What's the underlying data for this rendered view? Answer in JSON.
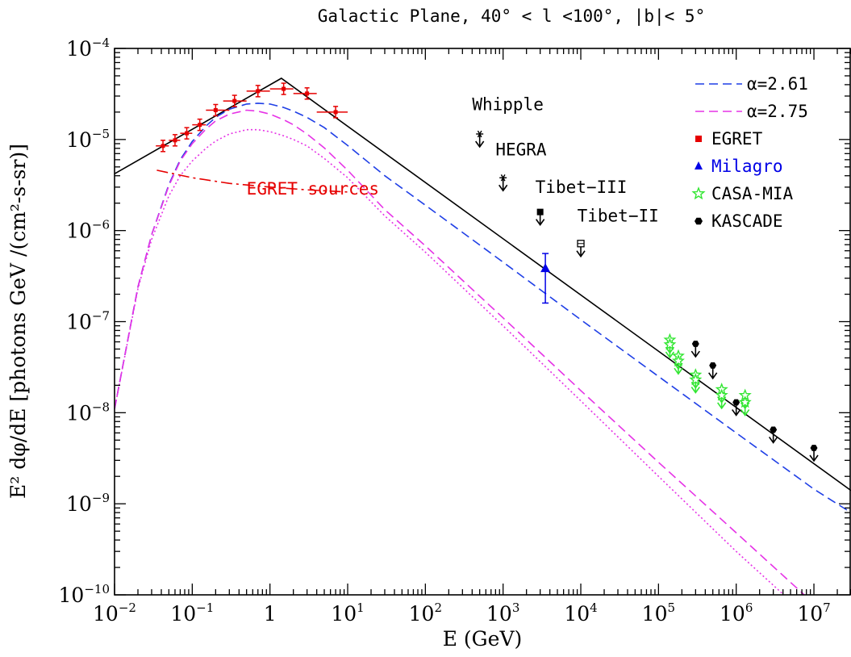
{
  "chart_data": {
    "type": "line",
    "title": "Galactic Plane, 40° < l <100°, |b|< 5°",
    "xlabel": "E (GeV)",
    "ylabel": "E² dφ/dE  [photons GeV /(cm²-s-sr)]",
    "xscale": "log",
    "yscale": "log",
    "xlim": [
      0.01,
      30000000
    ],
    "ylim": [
      1e-10,
      0.0001
    ],
    "x_ticks": [
      {
        "value": 0.01,
        "base": "10",
        "exp": "−2"
      },
      {
        "value": 0.1,
        "base": "10",
        "exp": "−1"
      },
      {
        "value": 1,
        "base": "1",
        "exp": ""
      },
      {
        "value": 10,
        "base": "10",
        "exp": "1"
      },
      {
        "value": 100,
        "base": "10",
        "exp": "2"
      },
      {
        "value": 1000,
        "base": "10",
        "exp": "3"
      },
      {
        "value": 10000,
        "base": "10",
        "exp": "4"
      },
      {
        "value": 100000,
        "base": "10",
        "exp": "5"
      },
      {
        "value": 1000000,
        "base": "10",
        "exp": "6"
      },
      {
        "value": 10000000,
        "base": "10",
        "exp": "7"
      }
    ],
    "y_ticks": [
      {
        "value": 1e-10,
        "base": "10",
        "exp": "−10"
      },
      {
        "value": 1e-09,
        "base": "10",
        "exp": "−9"
      },
      {
        "value": 1e-08,
        "base": "10",
        "exp": "−8"
      },
      {
        "value": 1e-07,
        "base": "10",
        "exp": "−7"
      },
      {
        "value": 1e-06,
        "base": "10",
        "exp": "−6"
      },
      {
        "value": 1e-05,
        "base": "10",
        "exp": "−5"
      },
      {
        "value": 0.0001,
        "base": "10",
        "exp": "−4"
      }
    ],
    "grid": false,
    "legend_position": "top-right",
    "legend": [
      {
        "label": "α=2.61",
        "style": "dashed",
        "color": "#1f3fe6"
      },
      {
        "label": "α=2.75",
        "style": "dashed",
        "color": "#e633e6"
      },
      {
        "label": "EGRET",
        "marker": "square",
        "color": "#e60000",
        "text_color": "#000000"
      },
      {
        "label": "Milagro",
        "marker": "triangle",
        "color": "#0000e6",
        "text_color": "#0000e6"
      },
      {
        "label": "CASA-MIA",
        "marker": "star",
        "color": "#33e633",
        "text_color": "#000000"
      },
      {
        "label": "KASCADE",
        "marker": "hexagon",
        "color": "#000000",
        "text_color": "#000000"
      }
    ],
    "series": [
      {
        "style": "solid",
        "color": "#000000",
        "x": [
          0.01,
          1.4,
          30000000
        ],
        "y": [
          4.2e-06,
          4.7e-05,
          1.4e-09
        ]
      },
      {
        "name": "α=2.61",
        "style": "dashed",
        "color": "#1f3fe6",
        "x": [
          0.01,
          0.02,
          0.03,
          0.05,
          0.07,
          0.1,
          0.15,
          0.2,
          0.3,
          0.5,
          0.7,
          1,
          1.5,
          2,
          3,
          5,
          10,
          30,
          100,
          1000,
          10000,
          100000,
          1000000,
          10000000,
          30000000
        ],
        "y": [
          1.1e-08,
          2.4e-07,
          9e-07,
          3.2e-06,
          6e-06,
          9.5e-06,
          1.4e-05,
          1.75e-05,
          2.15e-05,
          2.45e-05,
          2.5e-05,
          2.45e-05,
          2.25e-05,
          2.05e-05,
          1.75e-05,
          1.35e-05,
          8.6e-06,
          4e-06,
          1.9e-06,
          4.5e-07,
          1.05e-07,
          2.5e-08,
          6e-09,
          1.45e-09,
          8e-10
        ]
      },
      {
        "name": "α=2.75",
        "style": "dashed",
        "color": "#e633e6",
        "x": [
          0.01,
          0.02,
          0.03,
          0.05,
          0.07,
          0.1,
          0.15,
          0.2,
          0.3,
          0.5,
          0.7,
          1,
          1.5,
          2,
          3,
          5,
          10,
          30,
          100,
          1000,
          10000,
          100000,
          1000000,
          10000000,
          30000000
        ],
        "y": [
          1.1e-08,
          2.4e-07,
          9e-07,
          3.1e-06,
          5.8e-06,
          9e-06,
          1.3e-05,
          1.6e-05,
          1.9e-05,
          2.1e-05,
          2.05e-05,
          1.9e-05,
          1.65e-05,
          1.45e-05,
          1.15e-05,
          8.1e-06,
          4.6e-06,
          1.7e-06,
          6.8e-07,
          1.1e-07,
          1.75e-08,
          2.85e-09,
          4.8e-10,
          8e-11,
          3.5e-11
        ]
      },
      {
        "style": "dotted",
        "color": "#e633e6",
        "x": [
          0.01,
          0.02,
          0.03,
          0.05,
          0.07,
          0.1,
          0.15,
          0.2,
          0.3,
          0.5,
          0.7,
          1,
          1.5,
          2,
          3,
          5,
          10,
          30,
          100,
          1000,
          10000,
          100000,
          1000000,
          10000000
        ],
        "y": [
          1.1e-08,
          2.3e-07,
          8e-07,
          2.4e-06,
          4e-06,
          5.8e-06,
          8e-06,
          9.6e-06,
          1.15e-05,
          1.28e-05,
          1.28e-05,
          1.22e-05,
          1.1e-05,
          1e-05,
          8.5e-06,
          6.2e-06,
          3.8e-06,
          1.45e-06,
          5.8e-07,
          9e-08,
          1.35e-08,
          2e-09,
          3e-10,
          5e-11
        ]
      },
      {
        "name": "EGRET sources",
        "style": "dashdot",
        "color": "#e60000",
        "x": [
          0.035,
          0.1,
          0.3,
          1,
          3,
          10
        ],
        "y": [
          4.6e-06,
          3.8e-06,
          3.3e-06,
          3e-06,
          2.8e-06,
          2.65e-06
        ]
      }
    ],
    "points": {
      "EGRET": {
        "color": "#e60000",
        "x": [
          0.042,
          0.06,
          0.085,
          0.125,
          0.2,
          0.35,
          0.7,
          1.5,
          3,
          7
        ],
        "y": [
          8.5e-06,
          9.8e-06,
          1.17e-05,
          1.45e-05,
          2.1e-05,
          2.65e-05,
          3.4e-05,
          3.6e-05,
          3.2e-05,
          2e-05
        ],
        "xerr_lo": [
          0.034,
          0.05,
          0.07,
          0.1,
          0.15,
          0.25,
          0.5,
          1,
          2,
          4
        ],
        "xerr_hi": [
          0.05,
          0.07,
          0.1,
          0.15,
          0.3,
          0.5,
          1,
          2,
          4,
          10
        ]
      },
      "Milagro": {
        "color": "#0000e6",
        "x": [
          3500
        ],
        "y": [
          3.8e-07
        ],
        "yerr_lo": [
          1.6e-07
        ],
        "yerr_hi": [
          5.6e-07
        ]
      },
      "CASA-MIA": {
        "color": "#33e633",
        "x": [
          140000,
          140000,
          180000,
          180000,
          300000,
          300000,
          650000,
          650000,
          1300000,
          1300000
        ],
        "y": [
          6.3e-08,
          5.6e-08,
          4.2e-08,
          3.7e-08,
          2.6e-08,
          2.3e-08,
          1.8e-08,
          1.55e-08,
          1.55e-08,
          1.3e-08
        ],
        "upper_limit": true
      },
      "KASCADE": {
        "color": "#000000",
        "x": [
          300000,
          500000,
          1000000,
          3000000,
          10000000
        ],
        "y": [
          5.7e-08,
          3.3e-08,
          1.3e-08,
          6.5e-09,
          4.1e-09
        ],
        "upper_limit": true
      },
      "Whipple": {
        "color": "#000000",
        "marker": "asterisk",
        "x": [
          500
        ],
        "y": [
          1.15e-05
        ],
        "upper_limit": true
      },
      "HEGRA": {
        "color": "#000000",
        "marker": "asterisk",
        "x": [
          1000
        ],
        "y": [
          3.8e-06
        ],
        "upper_limit": true
      },
      "Tibet-III": {
        "color": "#000000",
        "marker": "filled-square",
        "x": [
          3000
        ],
        "y": [
          1.6e-06
        ],
        "upper_limit": true
      },
      "Tibet-II": {
        "color": "#000000",
        "marker": "open-square",
        "x": [
          10000
        ],
        "y": [
          7.2e-07
        ],
        "upper_limit": true
      }
    },
    "annotations": [
      {
        "text": "Whipple",
        "x": 400,
        "y": 2.1e-05,
        "color": "#000000"
      },
      {
        "text": "HEGRA",
        "x": 800,
        "y": 6.7e-06,
        "color": "#000000"
      },
      {
        "text": "Tibet−III",
        "x": 2600,
        "y": 2.6e-06,
        "color": "#000000"
      },
      {
        "text": "Tibet−II",
        "x": 9000,
        "y": 1.25e-06,
        "color": "#000000"
      },
      {
        "text": "EGRET sources",
        "x": 0.5,
        "y": 2.5e-06,
        "color": "#e60000"
      }
    ]
  }
}
